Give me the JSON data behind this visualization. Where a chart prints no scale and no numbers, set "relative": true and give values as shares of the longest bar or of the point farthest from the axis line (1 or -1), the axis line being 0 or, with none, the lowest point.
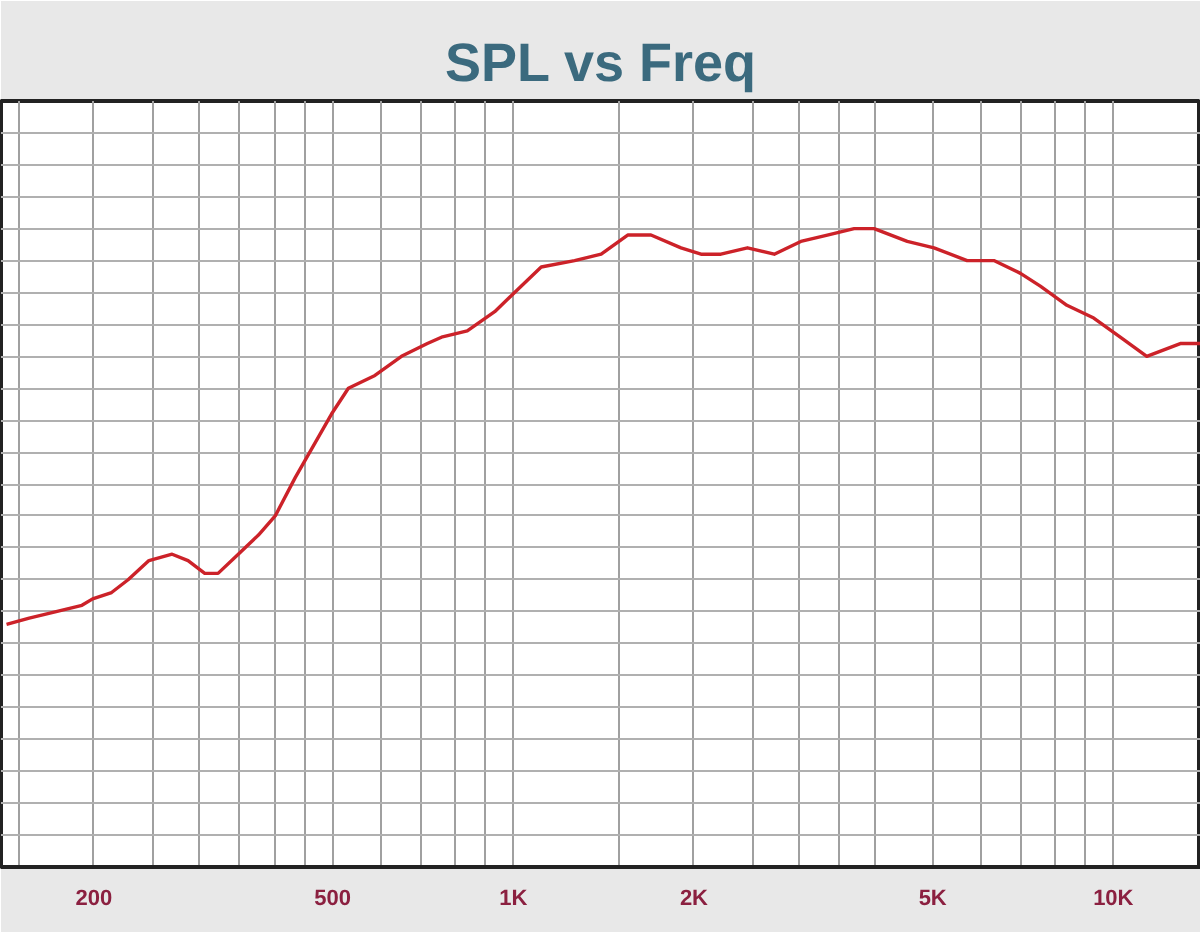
{
  "chart_data": {
    "type": "line",
    "title": "SPL vs Freq",
    "relative": true,
    "log": "x",
    "grid": true,
    "xlim": [
      140,
      14000
    ],
    "xticks": [
      {
        "value": 150,
        "label": null
      },
      200,
      {
        "value": 250,
        "label": null
      },
      {
        "value": 300,
        "label": null
      },
      {
        "value": 350,
        "label": null
      },
      {
        "value": 400,
        "label": null
      },
      {
        "value": 450,
        "label": null
      },
      500,
      {
        "value": 600,
        "label": null
      },
      {
        "value": 700,
        "label": null
      },
      {
        "value": 800,
        "label": null
      },
      {
        "value": 900,
        "label": null
      },
      {
        "value": 1000,
        "label": "1K"
      },
      {
        "value": 1500,
        "label": null
      },
      {
        "value": 2000,
        "label": "2K"
      },
      {
        "value": 2500,
        "label": null
      },
      {
        "value": 3000,
        "label": null
      },
      {
        "value": 3500,
        "label": null
      },
      {
        "value": 4000,
        "label": null
      },
      {
        "value": 5000,
        "label": "5K"
      },
      {
        "value": 6000,
        "label": null
      },
      {
        "value": 7000,
        "label": null
      },
      {
        "value": 8000,
        "label": null
      },
      {
        "value": 9000,
        "label": null
      },
      {
        "value": 10000,
        "label": "10K"
      }
    ],
    "x": [
      143,
      156,
      173,
      191,
      199,
      214,
      228,
      247,
      270,
      287,
      306,
      322,
      348,
      376,
      401,
      433,
      498,
      531,
      588,
      651,
      719,
      759,
      838,
      931,
      1005,
      1113,
      1265,
      1401,
      1551,
      1696,
      1903,
      2055,
      2218,
      2456,
      2722,
      3014,
      3337,
      3698,
      3993,
      4535,
      5025,
      5706,
      6323,
      7003,
      7557,
      8368,
      9276,
      10270,
      11370,
      12930,
      13950
    ],
    "series": [
      {
        "color": "#cc2229",
        "values": [
          0.38,
          0.39,
          0.4,
          0.41,
          0.42,
          0.43,
          0.45,
          0.48,
          0.49,
          0.48,
          0.46,
          0.46,
          0.49,
          0.52,
          0.55,
          0.61,
          0.71,
          0.75,
          0.77,
          0.8,
          0.82,
          0.83,
          0.84,
          0.87,
          0.9,
          0.94,
          0.95,
          0.96,
          0.99,
          0.99,
          0.97,
          0.96,
          0.96,
          0.97,
          0.96,
          0.98,
          0.99,
          1.0,
          1.0,
          0.98,
          0.97,
          0.95,
          0.95,
          0.93,
          0.91,
          0.88,
          0.86,
          0.83,
          0.8,
          0.82,
          0.82
        ]
      }
    ]
  }
}
